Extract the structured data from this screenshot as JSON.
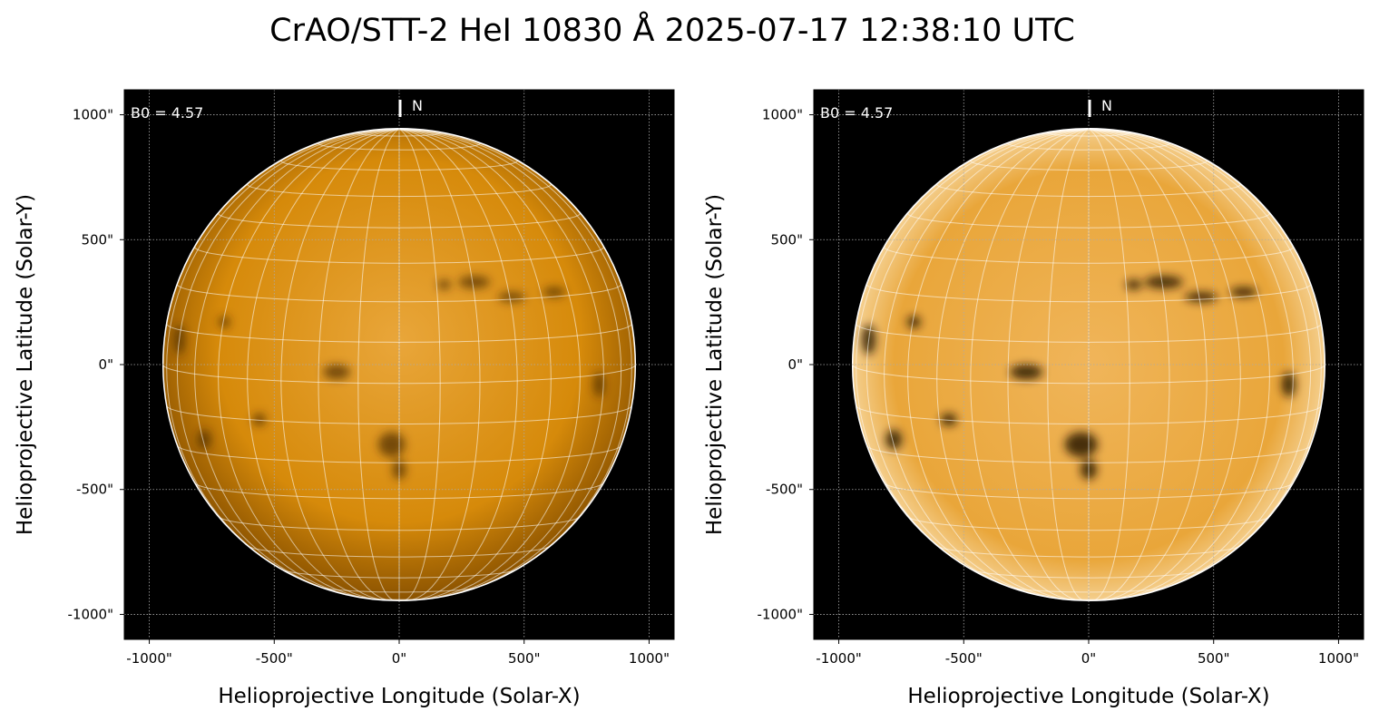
{
  "figure": {
    "title": "CrAO/STT-2 HeI 10830 Å 2025-07-17 12:38:10 UTC"
  },
  "colors": {
    "disk": "#d98a00",
    "disk_light": "#f4c36a",
    "background": "#000000",
    "grid": "#ffffff"
  },
  "chart_data": [
    {
      "type": "heatmap",
      "panel": "left",
      "title": "",
      "xlabel": "Helioprojective Longitude (Solar-X)",
      "ylabel": "Helioprojective Latitude (Solar-Y)",
      "xlim": [
        -1100,
        1100
      ],
      "ylim": [
        -1100,
        1100
      ],
      "xticks": [
        -1000,
        -500,
        0,
        500,
        1000
      ],
      "yticks": [
        -1000,
        -500,
        0,
        500,
        1000
      ],
      "xtick_labels": [
        "-1000\"",
        "-500\"",
        "0\"",
        "500\"",
        "1000\""
      ],
      "ytick_labels": [
        "-1000\"",
        "-500\"",
        "0\"",
        "500\"",
        "1000\""
      ],
      "grid": true,
      "solar_radius_arcsec": 945,
      "heliographic_grid_step_deg": 10,
      "annotations": {
        "b0": "B0 = 4.57",
        "north": "N"
      }
    },
    {
      "type": "heatmap",
      "panel": "right",
      "title": "",
      "xlabel": "Helioprojective Longitude (Solar-X)",
      "ylabel": "Helioprojective Latitude (Solar-Y)",
      "xlim": [
        -1100,
        1100
      ],
      "ylim": [
        -1100,
        1100
      ],
      "xticks": [
        -1000,
        -500,
        0,
        500,
        1000
      ],
      "yticks": [
        -1000,
        -500,
        0,
        500,
        1000
      ],
      "xtick_labels": [
        "-1000\"",
        "-500\"",
        "0\"",
        "500\"",
        "1000\""
      ],
      "ytick_labels": [
        "-1000\"",
        "-500\"",
        "0\"",
        "500\"",
        "1000\""
      ],
      "grid": true,
      "solar_radius_arcsec": 945,
      "heliographic_grid_step_deg": 10,
      "annotations": {
        "b0": "B0 = 4.57",
        "north": "N"
      }
    }
  ]
}
